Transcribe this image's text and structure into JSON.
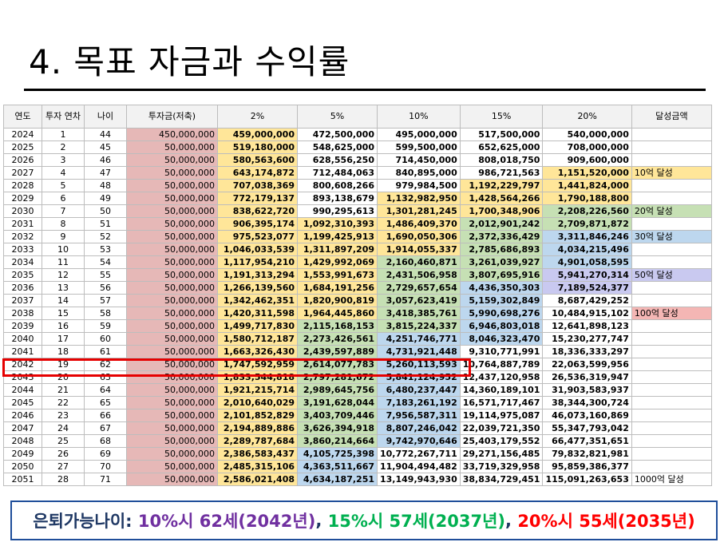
{
  "title": "4. 목표 자금과 수익률",
  "columns": [
    "연도",
    "투자 연차",
    "나이",
    "투자금(저축)",
    "2%",
    "5%",
    "10%",
    "15%",
    "20%",
    "달성금액"
  ],
  "rows": [
    [
      "2024",
      "1",
      "44",
      "450,000,000",
      "459,000,000",
      "472,500,000",
      "495,000,000",
      "517,500,000",
      "540,000,000",
      ""
    ],
    [
      "2025",
      "2",
      "45",
      "50,000,000",
      "519,180,000",
      "548,625,000",
      "599,500,000",
      "652,625,000",
      "708,000,000",
      ""
    ],
    [
      "2026",
      "3",
      "46",
      "50,000,000",
      "580,563,600",
      "628,556,250",
      "714,450,000",
      "808,018,750",
      "909,600,000",
      ""
    ],
    [
      "2027",
      "4",
      "47",
      "50,000,000",
      "643,174,872",
      "712,484,063",
      "840,895,000",
      "986,721,563",
      "1,151,520,000",
      "10억 달성"
    ],
    [
      "2028",
      "5",
      "48",
      "50,000,000",
      "707,038,369",
      "800,608,266",
      "979,984,500",
      "1,192,229,797",
      "1,441,824,000",
      ""
    ],
    [
      "2029",
      "6",
      "49",
      "50,000,000",
      "772,179,137",
      "893,138,679",
      "1,132,982,950",
      "1,428,564,266",
      "1,790,188,800",
      ""
    ],
    [
      "2030",
      "7",
      "50",
      "50,000,000",
      "838,622,720",
      "990,295,613",
      "1,301,281,245",
      "1,700,348,906",
      "2,208,226,560",
      "20억 달성"
    ],
    [
      "2031",
      "8",
      "51",
      "50,000,000",
      "906,395,174",
      "1,092,310,393",
      "1,486,409,370",
      "2,012,901,242",
      "2,709,871,872",
      ""
    ],
    [
      "2032",
      "9",
      "52",
      "50,000,000",
      "975,523,077",
      "1,199,425,913",
      "1,690,050,306",
      "2,372,336,429",
      "3,311,846,246",
      "30억 달성"
    ],
    [
      "2033",
      "10",
      "53",
      "50,000,000",
      "1,046,033,539",
      "1,311,897,209",
      "1,914,055,337",
      "2,785,686,893",
      "4,034,215,496",
      ""
    ],
    [
      "2034",
      "11",
      "54",
      "50,000,000",
      "1,117,954,210",
      "1,429,992,069",
      "2,160,460,871",
      "3,261,039,927",
      "4,901,058,595",
      ""
    ],
    [
      "2035",
      "12",
      "55",
      "50,000,000",
      "1,191,313,294",
      "1,553,991,673",
      "2,431,506,958",
      "3,807,695,916",
      "5,941,270,314",
      "50억 달성"
    ],
    [
      "2036",
      "13",
      "56",
      "50,000,000",
      "1,266,139,560",
      "1,684,191,256",
      "2,729,657,654",
      "4,436,350,303",
      "7,189,524,377",
      ""
    ],
    [
      "2037",
      "14",
      "57",
      "50,000,000",
      "1,342,462,351",
      "1,820,900,819",
      "3,057,623,419",
      "5,159,302,849",
      "8,687,429,252",
      ""
    ],
    [
      "2038",
      "15",
      "58",
      "50,000,000",
      "1,420,311,598",
      "1,964,445,860",
      "3,418,385,761",
      "5,990,698,276",
      "10,484,915,102",
      "100억 달성"
    ],
    [
      "2039",
      "16",
      "59",
      "50,000,000",
      "1,499,717,830",
      "2,115,168,153",
      "3,815,224,337",
      "6,946,803,018",
      "12,641,898,123",
      ""
    ],
    [
      "2040",
      "17",
      "60",
      "50,000,000",
      "1,580,712,187",
      "2,273,426,561",
      "4,251,746,771",
      "8,046,323,470",
      "15,230,277,747",
      ""
    ],
    [
      "2041",
      "18",
      "61",
      "50,000,000",
      "1,663,326,430",
      "2,439,597,889",
      "4,731,921,448",
      "9,310,771,991",
      "18,336,333,297",
      ""
    ],
    [
      "2042",
      "19",
      "62",
      "50,000,000",
      "1,747,592,959",
      "2,614,077,783",
      "5,260,113,593",
      "10,764,887,789",
      "22,063,599,956",
      ""
    ],
    [
      "2043",
      "20",
      "63",
      "50,000,000",
      "1,833,544,818",
      "2,797,281,672",
      "5,841,124,952",
      "12,437,120,958",
      "26,536,319,947",
      ""
    ],
    [
      "2044",
      "21",
      "64",
      "50,000,000",
      "1,921,215,714",
      "2,989,645,756",
      "6,480,237,447",
      "14,360,189,101",
      "31,903,583,937",
      ""
    ],
    [
      "2045",
      "22",
      "65",
      "50,000,000",
      "2,010,640,029",
      "3,191,628,044",
      "7,183,261,192",
      "16,571,717,467",
      "38,344,300,724",
      ""
    ],
    [
      "2046",
      "23",
      "66",
      "50,000,000",
      "2,101,852,829",
      "3,403,709,446",
      "7,956,587,311",
      "19,114,975,087",
      "46,073,160,869",
      ""
    ],
    [
      "2047",
      "24",
      "67",
      "50,000,000",
      "2,194,889,886",
      "3,626,394,918",
      "8,807,246,042",
      "22,039,721,350",
      "55,347,793,042",
      ""
    ],
    [
      "2048",
      "25",
      "68",
      "50,000,000",
      "2,289,787,684",
      "3,860,214,664",
      "9,742,970,646",
      "25,403,179,552",
      "66,477,351,651",
      ""
    ],
    [
      "2049",
      "26",
      "69",
      "50,000,000",
      "2,386,583,437",
      "4,105,725,398",
      "10,772,267,711",
      "29,271,156,485",
      "79,832,821,981",
      ""
    ],
    [
      "2050",
      "27",
      "70",
      "50,000,000",
      "2,485,315,106",
      "4,363,511,667",
      "11,904,494,482",
      "33,719,329,958",
      "95,859,386,377",
      ""
    ],
    [
      "2051",
      "28",
      "71",
      "50,000,000",
      "2,586,021,408",
      "4,634,187,251",
      "13,149,943,930",
      "38,834,729,451",
      "115,091,263,653",
      "1000억 달성"
    ]
  ],
  "cell_colors": {
    "y": "#ffe699",
    "g": "#c6e0b4",
    "b": "#bdd7ee",
    "p": "#c9c9f0",
    "rd": "#f4b6b4",
    "invest": "#e6b8b7"
  },
  "cell_fills": {
    "4": {
      "0": "y",
      "1": "y",
      "2": "y",
      "3": "y",
      "4": "y",
      "5": "y",
      "6": "y",
      "7": "y",
      "8": "y",
      "9": "y",
      "10": "y",
      "11": "y",
      "12": "y",
      "13": "y",
      "14": "y",
      "15": "y",
      "16": "y",
      "17": "y",
      "18": "y",
      "19": "y",
      "20": "y",
      "21": "y",
      "22": "y",
      "23": "y",
      "24": "y",
      "25": "y",
      "26": "y",
      "27": "y"
    },
    "5": {
      "7": "y",
      "8": "y",
      "9": "y",
      "10": "y",
      "11": "y",
      "12": "y",
      "13": "y",
      "14": "y",
      "15": "g",
      "16": "g",
      "17": "g",
      "18": "g",
      "19": "g",
      "20": "g",
      "21": "g",
      "22": "g",
      "23": "g",
      "24": "g",
      "25": "b",
      "26": "b",
      "27": "b"
    },
    "6": {
      "5": "y",
      "6": "y",
      "7": "y",
      "8": "y",
      "9": "y",
      "10": "g",
      "11": "g",
      "12": "g",
      "13": "g",
      "14": "g",
      "15": "g",
      "16": "b",
      "17": "b",
      "18": "b",
      "19": "b",
      "20": "b",
      "21": "b",
      "22": "b",
      "23": "b",
      "24": "b"
    },
    "7": {
      "4": "y",
      "5": "y",
      "6": "y",
      "7": "g",
      "8": "g",
      "9": "g",
      "10": "g",
      "11": "g",
      "12": "b",
      "13": "b",
      "14": "b",
      "15": "b",
      "16": "b"
    },
    "8": {
      "3": "y",
      "4": "y",
      "5": "y",
      "6": "g",
      "7": "g",
      "8": "b",
      "9": "b",
      "10": "b",
      "11": "p",
      "12": "p"
    },
    "9": {
      "3": "y",
      "6": "g",
      "8": "b",
      "11": "p",
      "14": "rd"
    }
  },
  "highlight_row": "2042",
  "banner": {
    "prefix": "은퇴가능나이: ",
    "part1": "10%시 62세(2042년)",
    "sep1": ", ",
    "part2": "15%시 57세(2037년)",
    "sep2": ", ",
    "part3": "20%시 55세(2035년)",
    "colors": {
      "prefix": "#1f3864",
      "part1": "#7030a0",
      "part2": "#00b050",
      "part3": "#ff0000",
      "sep": "#1f3864"
    }
  }
}
